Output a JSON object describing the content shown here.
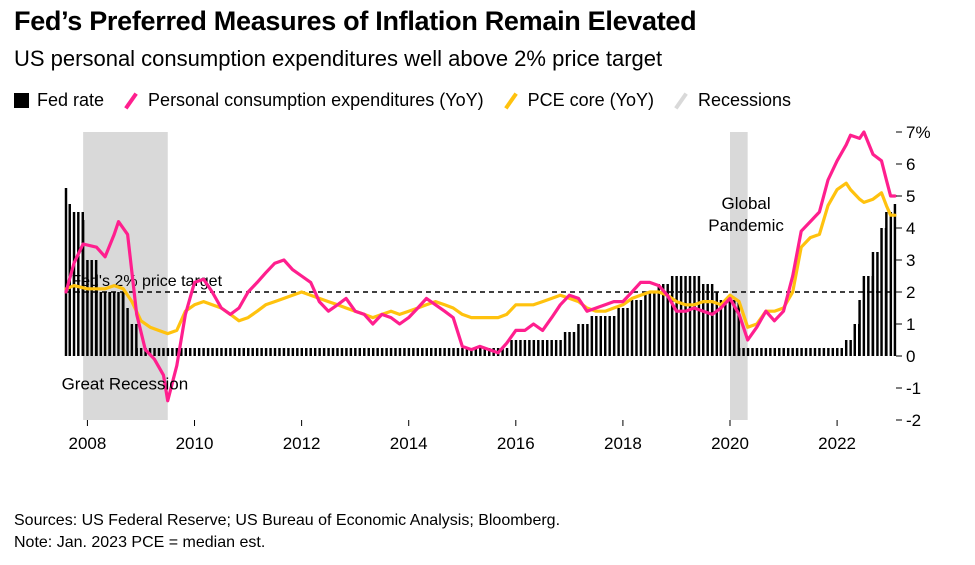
{
  "title": "Fed’s Preferred Measures of Inflation Remain Elevated",
  "subtitle": "US personal consumption expenditures well above 2% price target",
  "legend": {
    "fed_rate": "Fed rate",
    "pce": "Personal consumption expenditures (YoY)",
    "pce_core": "PCE core (YoY)",
    "recessions": "Recessions"
  },
  "colors": {
    "fed_rate": "#000000",
    "pce": "#ff1f8e",
    "pce_core": "#ffc20e",
    "recession": "#d9d9d9"
  },
  "source": "Sources: US Federal Reserve; US Bureau of Economic Analysis; Bloomberg.",
  "note": "Note: Jan. 2023 PCE = median est.",
  "chart_data": {
    "type": "line",
    "title": "Fed’s Preferred Measures of Inflation Remain Elevated",
    "ylim": [
      -2,
      7
    ],
    "xlim": [
      2007.6,
      2023.1
    ],
    "y_ticks": [
      7,
      6,
      5,
      4,
      3,
      2,
      1,
      0,
      -1,
      -2
    ],
    "y_tick_labels": [
      "7%",
      "6",
      "5",
      "4",
      "3",
      "2",
      "1",
      "0",
      "-1",
      "-2"
    ],
    "x_ticks": [
      2008,
      2010,
      2012,
      2014,
      2016,
      2018,
      2020,
      2022
    ],
    "x_tick_labels": [
      "2008",
      "2010",
      "2012",
      "2014",
      "2016",
      "2018",
      "2020",
      "2022"
    ],
    "target": {
      "value": 2,
      "label": "Fed's 2% price target"
    },
    "recessions": [
      [
        2007.92,
        2009.5
      ],
      [
        2020.0,
        2020.33
      ]
    ],
    "annotations": [
      {
        "text": "Great Recession",
        "x": 2008.7,
        "y": -1.05
      },
      {
        "text": "Global",
        "x": 2020.3,
        "y": 4.6
      },
      {
        "text": "Pandemic",
        "x": 2020.3,
        "y": 3.9
      }
    ],
    "series": [
      {
        "name": "Fed rate",
        "kind": "bar",
        "points": [
          [
            2007.6,
            5.25
          ],
          [
            2007.67,
            4.75
          ],
          [
            2007.75,
            4.5
          ],
          [
            2007.83,
            4.5
          ],
          [
            2007.92,
            4.25
          ],
          [
            2008.0,
            3.0
          ],
          [
            2008.08,
            3.0
          ],
          [
            2008.17,
            2.25
          ],
          [
            2008.25,
            2.0
          ],
          [
            2008.33,
            2.0
          ],
          [
            2008.42,
            2.0
          ],
          [
            2008.5,
            2.0
          ],
          [
            2008.58,
            2.0
          ],
          [
            2008.67,
            2.0
          ],
          [
            2008.75,
            1.5
          ],
          [
            2008.83,
            1.0
          ],
          [
            2008.92,
            0.25
          ],
          [
            2015.92,
            0.5
          ],
          [
            2016.92,
            0.75
          ],
          [
            2017.17,
            1.0
          ],
          [
            2017.42,
            1.25
          ],
          [
            2017.92,
            1.5
          ],
          [
            2018.17,
            1.75
          ],
          [
            2018.42,
            2.0
          ],
          [
            2018.67,
            2.25
          ],
          [
            2018.92,
            2.5
          ],
          [
            2019.5,
            2.25
          ],
          [
            2019.67,
            2.0
          ],
          [
            2019.83,
            1.75
          ],
          [
            2020.17,
            0.25
          ],
          [
            2022.17,
            0.5
          ],
          [
            2022.33,
            1.0
          ],
          [
            2022.42,
            1.75
          ],
          [
            2022.5,
            2.5
          ],
          [
            2022.67,
            3.25
          ],
          [
            2022.83,
            4.0
          ],
          [
            2022.92,
            4.5
          ],
          [
            2023.08,
            4.75
          ]
        ]
      },
      {
        "name": "Personal consumption expenditures (YoY)",
        "kind": "line",
        "points": [
          [
            2007.6,
            2.0
          ],
          [
            2007.75,
            2.9
          ],
          [
            2007.92,
            3.5
          ],
          [
            2008.17,
            3.4
          ],
          [
            2008.33,
            3.1
          ],
          [
            2008.5,
            3.8
          ],
          [
            2008.58,
            4.2
          ],
          [
            2008.75,
            3.8
          ],
          [
            2008.92,
            1.3
          ],
          [
            2009.08,
            0.2
          ],
          [
            2009.25,
            -0.1
          ],
          [
            2009.42,
            -0.6
          ],
          [
            2009.5,
            -1.4
          ],
          [
            2009.67,
            -0.3
          ],
          [
            2009.83,
            1.3
          ],
          [
            2010.0,
            2.3
          ],
          [
            2010.17,
            2.4
          ],
          [
            2010.33,
            2.0
          ],
          [
            2010.5,
            1.5
          ],
          [
            2010.67,
            1.3
          ],
          [
            2010.83,
            1.5
          ],
          [
            2011.0,
            2.0
          ],
          [
            2011.17,
            2.3
          ],
          [
            2011.33,
            2.6
          ],
          [
            2011.5,
            2.9
          ],
          [
            2011.67,
            3.0
          ],
          [
            2011.83,
            2.7
          ],
          [
            2012.0,
            2.5
          ],
          [
            2012.17,
            2.3
          ],
          [
            2012.33,
            1.7
          ],
          [
            2012.5,
            1.4
          ],
          [
            2012.67,
            1.6
          ],
          [
            2012.83,
            1.8
          ],
          [
            2013.0,
            1.4
          ],
          [
            2013.17,
            1.3
          ],
          [
            2013.33,
            1.0
          ],
          [
            2013.5,
            1.3
          ],
          [
            2013.67,
            1.2
          ],
          [
            2013.83,
            1.0
          ],
          [
            2014.0,
            1.2
          ],
          [
            2014.17,
            1.5
          ],
          [
            2014.33,
            1.8
          ],
          [
            2014.5,
            1.6
          ],
          [
            2014.67,
            1.4
          ],
          [
            2014.83,
            1.2
          ],
          [
            2015.0,
            0.3
          ],
          [
            2015.17,
            0.2
          ],
          [
            2015.33,
            0.3
          ],
          [
            2015.5,
            0.2
          ],
          [
            2015.67,
            0.1
          ],
          [
            2015.83,
            0.4
          ],
          [
            2016.0,
            0.8
          ],
          [
            2016.17,
            0.8
          ],
          [
            2016.33,
            1.0
          ],
          [
            2016.5,
            0.8
          ],
          [
            2016.67,
            1.2
          ],
          [
            2016.83,
            1.6
          ],
          [
            2017.0,
            1.9
          ],
          [
            2017.17,
            1.8
          ],
          [
            2017.33,
            1.4
          ],
          [
            2017.5,
            1.5
          ],
          [
            2017.67,
            1.6
          ],
          [
            2017.83,
            1.7
          ],
          [
            2018.0,
            1.7
          ],
          [
            2018.17,
            2.0
          ],
          [
            2018.33,
            2.3
          ],
          [
            2018.5,
            2.3
          ],
          [
            2018.67,
            2.2
          ],
          [
            2018.83,
            1.9
          ],
          [
            2019.0,
            1.4
          ],
          [
            2019.17,
            1.4
          ],
          [
            2019.33,
            1.5
          ],
          [
            2019.5,
            1.4
          ],
          [
            2019.67,
            1.3
          ],
          [
            2019.83,
            1.5
          ],
          [
            2020.0,
            1.8
          ],
          [
            2020.17,
            1.3
          ],
          [
            2020.33,
            0.5
          ],
          [
            2020.5,
            0.9
          ],
          [
            2020.67,
            1.4
          ],
          [
            2020.83,
            1.1
          ],
          [
            2021.0,
            1.4
          ],
          [
            2021.17,
            2.5
          ],
          [
            2021.33,
            3.9
          ],
          [
            2021.5,
            4.2
          ],
          [
            2021.67,
            4.5
          ],
          [
            2021.83,
            5.5
          ],
          [
            2022.0,
            6.1
          ],
          [
            2022.17,
            6.6
          ],
          [
            2022.25,
            6.9
          ],
          [
            2022.42,
            6.8
          ],
          [
            2022.5,
            7.0
          ],
          [
            2022.67,
            6.3
          ],
          [
            2022.83,
            6.1
          ],
          [
            2022.92,
            5.5
          ],
          [
            2023.0,
            5.0
          ],
          [
            2023.08,
            5.0
          ]
        ]
      },
      {
        "name": "PCE core (YoY)",
        "kind": "line",
        "points": [
          [
            2007.6,
            2.1
          ],
          [
            2007.75,
            2.2
          ],
          [
            2008.0,
            2.1
          ],
          [
            2008.17,
            2.1
          ],
          [
            2008.33,
            2.1
          ],
          [
            2008.5,
            2.2
          ],
          [
            2008.67,
            2.1
          ],
          [
            2008.83,
            1.7
          ],
          [
            2009.0,
            1.1
          ],
          [
            2009.17,
            0.9
          ],
          [
            2009.33,
            0.8
          ],
          [
            2009.5,
            0.7
          ],
          [
            2009.67,
            0.8
          ],
          [
            2009.83,
            1.4
          ],
          [
            2010.0,
            1.6
          ],
          [
            2010.17,
            1.7
          ],
          [
            2010.33,
            1.6
          ],
          [
            2010.5,
            1.5
          ],
          [
            2010.67,
            1.3
          ],
          [
            2010.83,
            1.1
          ],
          [
            2011.0,
            1.2
          ],
          [
            2011.17,
            1.4
          ],
          [
            2011.33,
            1.6
          ],
          [
            2011.5,
            1.7
          ],
          [
            2011.67,
            1.8
          ],
          [
            2011.83,
            1.9
          ],
          [
            2012.0,
            2.0
          ],
          [
            2012.17,
            1.9
          ],
          [
            2012.33,
            1.8
          ],
          [
            2012.5,
            1.7
          ],
          [
            2012.67,
            1.6
          ],
          [
            2012.83,
            1.5
          ],
          [
            2013.0,
            1.4
          ],
          [
            2013.17,
            1.3
          ],
          [
            2013.33,
            1.2
          ],
          [
            2013.5,
            1.3
          ],
          [
            2013.67,
            1.4
          ],
          [
            2013.83,
            1.3
          ],
          [
            2014.0,
            1.4
          ],
          [
            2014.17,
            1.5
          ],
          [
            2014.33,
            1.6
          ],
          [
            2014.5,
            1.7
          ],
          [
            2014.67,
            1.6
          ],
          [
            2014.83,
            1.5
          ],
          [
            2015.0,
            1.3
          ],
          [
            2015.17,
            1.2
          ],
          [
            2015.33,
            1.2
          ],
          [
            2015.5,
            1.2
          ],
          [
            2015.67,
            1.2
          ],
          [
            2015.83,
            1.3
          ],
          [
            2016.0,
            1.6
          ],
          [
            2016.17,
            1.6
          ],
          [
            2016.33,
            1.6
          ],
          [
            2016.5,
            1.7
          ],
          [
            2016.67,
            1.8
          ],
          [
            2016.83,
            1.9
          ],
          [
            2017.0,
            1.8
          ],
          [
            2017.17,
            1.7
          ],
          [
            2017.33,
            1.5
          ],
          [
            2017.5,
            1.4
          ],
          [
            2017.67,
            1.4
          ],
          [
            2017.83,
            1.5
          ],
          [
            2018.0,
            1.6
          ],
          [
            2018.17,
            1.8
          ],
          [
            2018.33,
            1.9
          ],
          [
            2018.5,
            2.0
          ],
          [
            2018.67,
            2.0
          ],
          [
            2018.83,
            1.9
          ],
          [
            2019.0,
            1.7
          ],
          [
            2019.17,
            1.6
          ],
          [
            2019.33,
            1.6
          ],
          [
            2019.5,
            1.7
          ],
          [
            2019.67,
            1.7
          ],
          [
            2019.83,
            1.6
          ],
          [
            2020.0,
            1.9
          ],
          [
            2020.17,
            1.7
          ],
          [
            2020.33,
            0.9
          ],
          [
            2020.5,
            1.0
          ],
          [
            2020.67,
            1.4
          ],
          [
            2020.83,
            1.4
          ],
          [
            2021.0,
            1.5
          ],
          [
            2021.17,
            2.0
          ],
          [
            2021.33,
            3.4
          ],
          [
            2021.5,
            3.7
          ],
          [
            2021.67,
            3.8
          ],
          [
            2021.83,
            4.7
          ],
          [
            2022.0,
            5.2
          ],
          [
            2022.17,
            5.4
          ],
          [
            2022.25,
            5.2
          ],
          [
            2022.42,
            4.9
          ],
          [
            2022.5,
            4.8
          ],
          [
            2022.67,
            4.9
          ],
          [
            2022.83,
            5.1
          ],
          [
            2022.92,
            4.7
          ],
          [
            2023.0,
            4.4
          ],
          [
            2023.08,
            4.4
          ]
        ]
      }
    ]
  }
}
